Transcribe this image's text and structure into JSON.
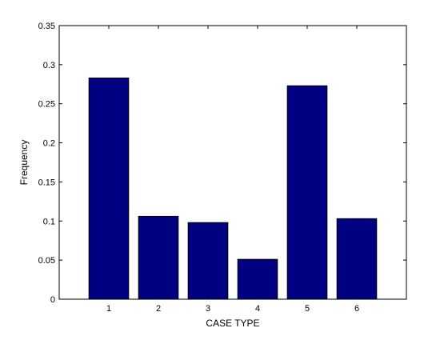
{
  "chart_data": {
    "type": "bar",
    "title": "",
    "xlabel": "CASE TYPE",
    "ylabel": "Frequency",
    "categories": [
      "1",
      "2",
      "3",
      "4",
      "5",
      "6"
    ],
    "values": [
      0.283,
      0.106,
      0.098,
      0.051,
      0.273,
      0.103
    ],
    "xlim": [
      0,
      7
    ],
    "ylim": [
      0,
      0.35
    ],
    "yticks": [
      0,
      0.05,
      0.1,
      0.15,
      0.2,
      0.25,
      0.3,
      0.35
    ],
    "ytick_labels": [
      "0",
      "0.05",
      "0.1",
      "0.15",
      "0.2",
      "0.25",
      "0.3",
      "0.35"
    ],
    "bar_color": "#000080",
    "grid": false,
    "legend": "none"
  }
}
